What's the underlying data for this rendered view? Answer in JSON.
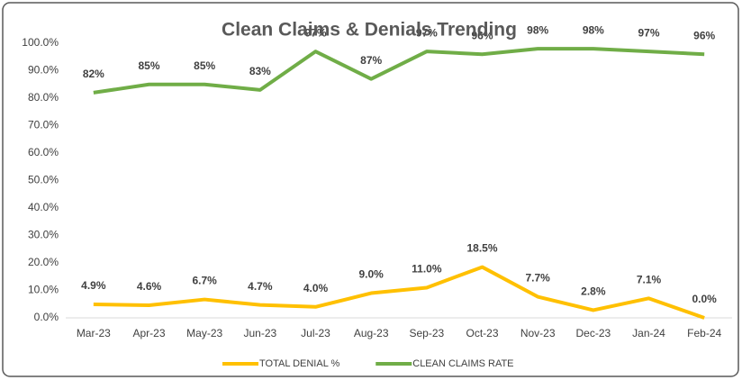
{
  "chart_data": {
    "type": "line",
    "title": "Clean Claims & Denials Trending",
    "categories": [
      "Mar-23",
      "Apr-23",
      "May-23",
      "Jun-23",
      "Jul-23",
      "Aug-23",
      "Sep-23",
      "Oct-23",
      "Nov-23",
      "Dec-23",
      "Jan-24",
      "Feb-24"
    ],
    "series": [
      {
        "name": "TOTAL DENIAL %",
        "color": "#FFC000",
        "values": [
          4.9,
          4.6,
          6.7,
          4.7,
          4.0,
          9.0,
          11.0,
          18.5,
          7.7,
          2.8,
          7.1,
          0.0
        ],
        "value_labels": [
          "4.9%",
          "4.6%",
          "6.7%",
          "4.7%",
          "4.0%",
          "9.0%",
          "11.0%",
          "18.5%",
          "7.7%",
          "2.8%",
          "7.1%",
          "0.0%"
        ]
      },
      {
        "name": "CLEAN CLAIMS RATE",
        "color": "#70AD47",
        "values": [
          82,
          85,
          85,
          83,
          97,
          87,
          97,
          96,
          98,
          98,
          97,
          96
        ],
        "value_labels": [
          "82%",
          "85%",
          "85%",
          "83%",
          "97%",
          "87%",
          "97%",
          "96%",
          "98%",
          "98%",
          "97%",
          "96%"
        ]
      }
    ],
    "ylim": [
      0,
      100
    ],
    "yticks": [
      {
        "value": 0,
        "label": "0.0%"
      },
      {
        "value": 10,
        "label": "10.0%"
      },
      {
        "value": 20,
        "label": "20.0%"
      },
      {
        "value": 30,
        "label": "30.0%"
      },
      {
        "value": 40,
        "label": "40.0%"
      },
      {
        "value": 50,
        "label": "50.0%"
      },
      {
        "value": 60,
        "label": "60.0%"
      },
      {
        "value": 70,
        "label": "70.0%"
      },
      {
        "value": 80,
        "label": "80.0%"
      },
      {
        "value": 90,
        "label": "90.0%"
      },
      {
        "value": 100,
        "label": "100.0%"
      }
    ],
    "grid": false,
    "legend": "bottom"
  }
}
